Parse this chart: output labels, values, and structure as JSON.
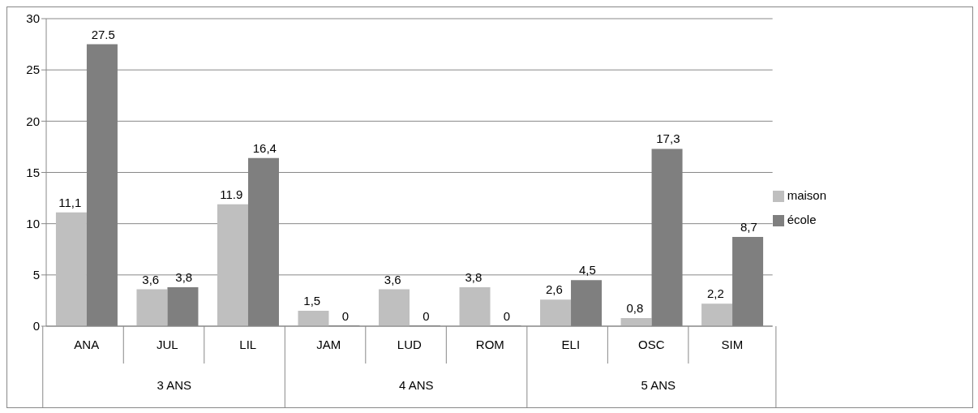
{
  "chart_data": {
    "type": "bar",
    "categories": [
      "ANA",
      "JUL",
      "LIL",
      "JAM",
      "LUD",
      "ROM",
      "ELI",
      "OSC",
      "SIM"
    ],
    "series": [
      {
        "name": "maison",
        "color": "#bfbfbf",
        "values": [
          11.1,
          3.6,
          11.9,
          1.5,
          3.6,
          3.8,
          2.6,
          0.8,
          2.2
        ],
        "value_labels": [
          "11,1",
          "3,6",
          "11.9",
          "1,5",
          "3,6",
          "3,8",
          "2,6",
          "0,8",
          "2,2"
        ]
      },
      {
        "name": "école",
        "color": "#7f7f7f",
        "values": [
          27.5,
          3.8,
          16.4,
          0,
          0,
          0,
          4.5,
          17.3,
          8.7
        ],
        "value_labels": [
          "27.5",
          "3,8",
          "16,4",
          "0",
          "0",
          "0",
          "4,5",
          "17,3",
          "8,7"
        ]
      }
    ],
    "annotations": [
      "3 ANS",
      "4 ANS",
      "5 ANS"
    ],
    "ylim": [
      0,
      30
    ],
    "yticks": [
      0,
      5,
      10,
      15,
      20,
      25,
      30
    ],
    "grid": "y",
    "legend": "right"
  }
}
